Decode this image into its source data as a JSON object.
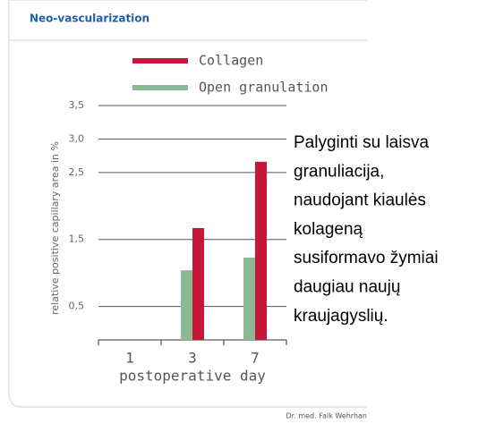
{
  "chart_data": {
    "type": "bar",
    "title": "Neo-vascularization",
    "ylabel": "relative positive capillary area in %",
    "xlabel": "postoperative day",
    "categories": [
      "1",
      "3",
      "7"
    ],
    "series": [
      {
        "name": "Collagen",
        "color": "#c8183a",
        "values": [
          null,
          1.67,
          2.66
        ]
      },
      {
        "name": "Open granulation",
        "color": "#8cb894",
        "values": [
          null,
          1.04,
          1.23
        ]
      }
    ],
    "ylim": [
      0,
      3.5
    ],
    "yticks": [
      {
        "value": 0.5,
        "label": "0,5"
      },
      {
        "value": 1.5,
        "label": "1,5"
      },
      {
        "value": 2.5,
        "label": "2,5"
      },
      {
        "value": 3.0,
        "label": "3,0"
      },
      {
        "value": 3.5,
        "label": "3,5"
      }
    ],
    "grid": true,
    "annotation": [
      "Palyginti su laisva",
      "granuliacija,",
      "naudojant kiaulės",
      "kolageną",
      "susiformavo žymiai",
      "daugiau naujų",
      "kraujagyslių."
    ],
    "source": "Dr. med. Falk Wehrhan"
  }
}
